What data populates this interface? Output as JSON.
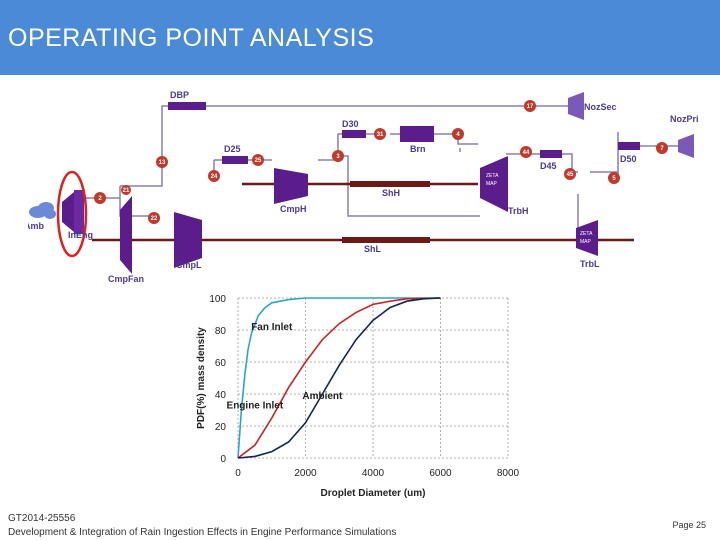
{
  "slide": {
    "title": "OPERATING POINT ANALYSIS",
    "title_bar_color": "#4a8ad6"
  },
  "schematic": {
    "labels": {
      "amb": "Amb",
      "ineng": "InEng",
      "cmpfan": "CmpFan",
      "cmpl": "CmpL",
      "cmph": "CmpH",
      "shh": "ShH",
      "shl": "ShL",
      "brn": "Brn",
      "trbh": "TrbH",
      "trbl": "TrbL",
      "nozsec": "NozSec",
      "nozpri": "NozPri",
      "dbp": "DBP",
      "d25": "D25",
      "d30": "D30",
      "d45": "D45",
      "d50": "D50",
      "zeta": "ZETA",
      "map": "MAP"
    },
    "stations": [
      "2",
      "13",
      "17",
      "21",
      "22",
      "24",
      "25",
      "3",
      "31",
      "4",
      "44",
      "45",
      "5",
      "7"
    ],
    "colors": {
      "component": "#5b1d8c",
      "circle": "#c0392b",
      "line": "#8a7fb0",
      "shaft": "#6b1a1a"
    }
  },
  "chart_data": {
    "type": "line",
    "xlabel": "Droplet Diameter (um)",
    "ylabel": "PDF(%) mass density",
    "x_ticks": [
      "0",
      "2000",
      "4000",
      "6000",
      "8000"
    ],
    "y_ticks": [
      "0",
      "20",
      "40",
      "60",
      "80",
      "100"
    ],
    "xlim": [
      0,
      8000
    ],
    "ylim": [
      0,
      100
    ],
    "grid": true,
    "annotations": [
      "Fan Inlet",
      "Engine Inlet",
      "Ambient"
    ],
    "series": [
      {
        "name": "Fan Inlet",
        "color": "#2aa6c9",
        "x": [
          0,
          100,
          200,
          300,
          400,
          600,
          800,
          1000,
          1500,
          2000,
          3000,
          6000
        ],
        "y": [
          0,
          30,
          52,
          68,
          78,
          89,
          94,
          97,
          99,
          100,
          100,
          100
        ]
      },
      {
        "name": "Engine Inlet",
        "color": "#cc2222",
        "x": [
          0,
          500,
          1000,
          1500,
          2000,
          2500,
          3000,
          3500,
          4000,
          4500,
          5000,
          6000
        ],
        "y": [
          0,
          8,
          25,
          44,
          60,
          74,
          84,
          91,
          96,
          98,
          99.5,
          100
        ]
      },
      {
        "name": "Ambient",
        "color": "#14264d",
        "x": [
          0,
          500,
          1000,
          1500,
          2000,
          2500,
          3000,
          3500,
          4000,
          4500,
          5000,
          5500,
          6000
        ],
        "y": [
          0,
          1,
          4,
          10,
          22,
          40,
          58,
          74,
          86,
          94,
          98,
          99.5,
          100
        ]
      }
    ]
  },
  "footer": {
    "line1": "GT2014-25556",
    "line2": "Development & Integration of Rain Ingestion Effects in Engine Performance Simulations",
    "page": "Page 25"
  }
}
